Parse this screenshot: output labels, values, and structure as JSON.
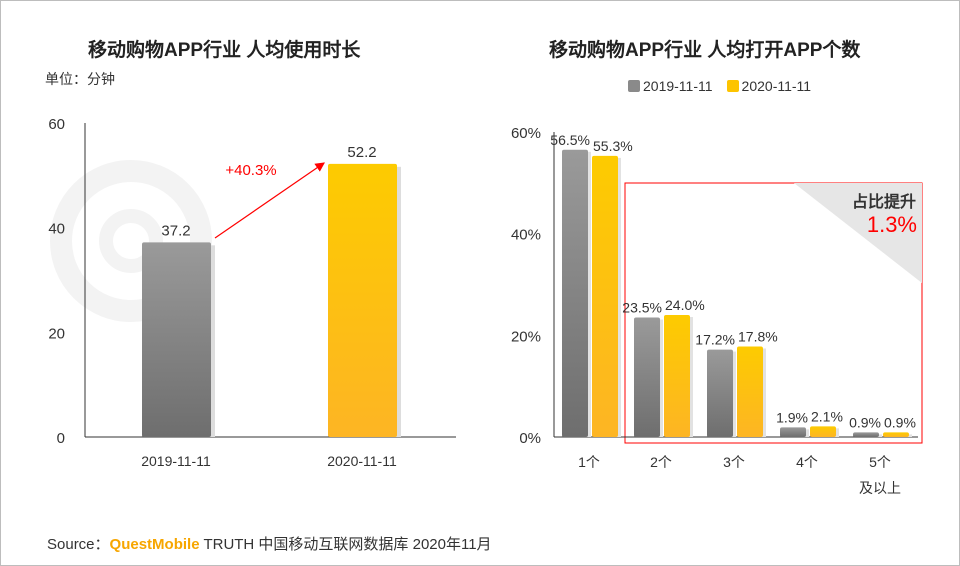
{
  "chart_data": [
    {
      "type": "bar",
      "title": "移动购物APP行业 人均使用时长",
      "unit_label": "单位：分钟",
      "categories": [
        "2019-11-11",
        "2020-11-11"
      ],
      "values": [
        37.2,
        52.2
      ],
      "value_labels": [
        "37.2",
        "52.2"
      ],
      "ylim": [
        0,
        60
      ],
      "yticks": [
        "0",
        "20",
        "40",
        "60"
      ],
      "ytick_values": [
        0,
        20,
        40,
        60
      ],
      "annotation": "+40.3%",
      "colors": [
        "#8a8a8a",
        "#fdb913"
      ],
      "annotation_color": "#ff0000",
      "grid": false
    },
    {
      "type": "bar",
      "title": "移动购物APP行业 人均打开APP个数",
      "categories": [
        "1个",
        "2个",
        "3个",
        "4个",
        "5个\n及以上"
      ],
      "category_lines": [
        [
          "1个"
        ],
        [
          "2个"
        ],
        [
          "3个"
        ],
        [
          "4个"
        ],
        [
          "5个",
          "及以上"
        ]
      ],
      "series": [
        {
          "name": "2019-11-11",
          "values": [
            56.5,
            23.5,
            17.2,
            1.9,
            0.9
          ],
          "labels": [
            "56.5%",
            "23.5%",
            "17.2%",
            "1.9%",
            "0.9%"
          ],
          "color": "#8a8a8a"
        },
        {
          "name": "2020-11-11",
          "values": [
            55.3,
            24.0,
            17.8,
            2.1,
            0.9
          ],
          "labels": [
            "55.3%",
            "24.0%",
            "17.8%",
            "2.1%",
            "0.9%"
          ],
          "color": "#fdc400"
        }
      ],
      "ylim": [
        0,
        60
      ],
      "yticks": [
        "0%",
        "20%",
        "40%",
        "60%"
      ],
      "ytick_values": [
        0,
        20,
        40,
        60
      ],
      "legend": "top",
      "grid": false,
      "callout": {
        "label": "占比提升",
        "value": "1.3%",
        "color": "#ff0000"
      }
    }
  ],
  "source": {
    "prefix": "Source：",
    "brand": "QuestMobile",
    "rest": " TRUTH 中国移动互联网数据库 2020年11月",
    "brand_color": "#f7a600"
  },
  "watermark": "QUESTMOBILE"
}
